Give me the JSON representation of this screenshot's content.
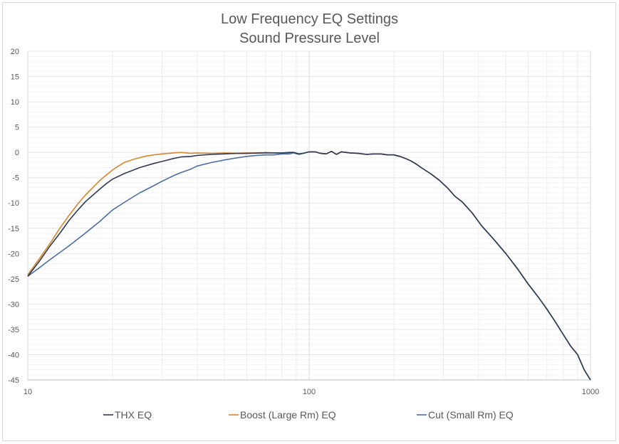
{
  "chart_data": {
    "type": "line",
    "title": "Low Frequency EQ Settings",
    "subtitle": "Sound Pressure Level",
    "x_scale": "log",
    "xlim": [
      10,
      1000
    ],
    "ylim": [
      -45,
      20
    ],
    "x_ticks": [
      "10",
      "100",
      "1000"
    ],
    "y_ticks": [
      "20",
      "15",
      "10",
      "5",
      "0",
      "-5",
      "-10",
      "-15",
      "-20",
      "-25",
      "-30",
      "-35",
      "-40",
      "-45"
    ],
    "grid": true,
    "legend_position": "bottom",
    "series": [
      {
        "name": "THX EQ",
        "color": "#2e3b55",
        "points": [
          [
            10,
            -24.5
          ],
          [
            11,
            -21.5
          ],
          [
            12,
            -18.5
          ],
          [
            13,
            -16
          ],
          [
            14,
            -13.5
          ],
          [
            15,
            -11.5
          ],
          [
            16,
            -9.8
          ],
          [
            17,
            -8.5
          ],
          [
            18,
            -7.3
          ],
          [
            19,
            -6.2
          ],
          [
            20,
            -5.3
          ],
          [
            22,
            -4.2
          ],
          [
            25,
            -3
          ],
          [
            28,
            -2.2
          ],
          [
            30,
            -1.8
          ],
          [
            33,
            -1.2
          ],
          [
            35,
            -0.9
          ],
          [
            38,
            -0.8
          ],
          [
            40,
            -0.6
          ],
          [
            45,
            -0.4
          ],
          [
            50,
            -0.3
          ],
          [
            55,
            -0.2
          ],
          [
            60,
            -0.2
          ],
          [
            65,
            -0.15
          ],
          [
            70,
            -0.1
          ],
          [
            75,
            -0.1
          ],
          [
            80,
            -0.1
          ],
          [
            85,
            0
          ],
          [
            88,
            0
          ],
          [
            92,
            -0.3
          ],
          [
            95,
            -0.2
          ],
          [
            100,
            0.1
          ],
          [
            105,
            0.1
          ],
          [
            110,
            -0.2
          ],
          [
            115,
            -0.3
          ],
          [
            120,
            0.2
          ],
          [
            125,
            -0.4
          ],
          [
            130,
            0.1
          ],
          [
            140,
            -0.1
          ],
          [
            150,
            -0.2
          ],
          [
            160,
            -0.4
          ],
          [
            170,
            -0.3
          ],
          [
            180,
            -0.3
          ],
          [
            190,
            -0.5
          ],
          [
            200,
            -0.5
          ],
          [
            210,
            -0.8
          ],
          [
            220,
            -1.2
          ],
          [
            230,
            -1.7
          ],
          [
            240,
            -2.3
          ],
          [
            250,
            -3
          ],
          [
            270,
            -4.2
          ],
          [
            290,
            -5.5
          ],
          [
            310,
            -7
          ],
          [
            330,
            -8.7
          ],
          [
            350,
            -9.8
          ],
          [
            380,
            -12
          ],
          [
            410,
            -14.5
          ],
          [
            450,
            -17
          ],
          [
            500,
            -20
          ],
          [
            550,
            -23
          ],
          [
            600,
            -26
          ],
          [
            650,
            -28.5
          ],
          [
            700,
            -31
          ],
          [
            750,
            -33.5
          ],
          [
            800,
            -36
          ],
          [
            850,
            -38.3
          ],
          [
            900,
            -40
          ],
          [
            950,
            -43
          ],
          [
            1000,
            -45
          ]
        ]
      },
      {
        "name": "Boost (Large Rm) EQ",
        "color": "#d9862e",
        "points": [
          [
            10,
            -24.2
          ],
          [
            11,
            -21
          ],
          [
            12,
            -18
          ],
          [
            13,
            -15
          ],
          [
            14,
            -12.5
          ],
          [
            15,
            -10.3
          ],
          [
            16,
            -8.5
          ],
          [
            17,
            -7
          ],
          [
            18,
            -5.6
          ],
          [
            19,
            -4.5
          ],
          [
            20,
            -3.5
          ],
          [
            21,
            -2.7
          ],
          [
            22,
            -2
          ],
          [
            24,
            -1.3
          ],
          [
            26,
            -0.8
          ],
          [
            28,
            -0.5
          ],
          [
            30,
            -0.3
          ],
          [
            33,
            -0.1
          ],
          [
            35,
            0
          ],
          [
            38,
            -0.2
          ],
          [
            40,
            -0.1
          ],
          [
            45,
            -0.2
          ],
          [
            50,
            -0.1
          ],
          [
            55,
            -0.2
          ],
          [
            60,
            -0.1
          ],
          [
            65,
            -0.1
          ],
          [
            70,
            0
          ],
          [
            75,
            -0.1
          ],
          [
            80,
            -0.1
          ],
          [
            85,
            -0.1
          ],
          [
            88,
            0
          ],
          [
            92,
            -0.3
          ],
          [
            95,
            -0.2
          ],
          [
            100,
            0.1
          ],
          [
            105,
            0.1
          ],
          [
            110,
            -0.2
          ],
          [
            115,
            -0.3
          ],
          [
            120,
            0.2
          ],
          [
            125,
            -0.4
          ],
          [
            130,
            0.1
          ],
          [
            140,
            -0.1
          ],
          [
            150,
            -0.2
          ],
          [
            160,
            -0.4
          ],
          [
            170,
            -0.3
          ],
          [
            180,
            -0.3
          ],
          [
            190,
            -0.5
          ],
          [
            200,
            -0.5
          ],
          [
            210,
            -0.8
          ],
          [
            220,
            -1.2
          ],
          [
            230,
            -1.7
          ],
          [
            240,
            -2.3
          ],
          [
            250,
            -3
          ],
          [
            270,
            -4.2
          ],
          [
            290,
            -5.5
          ],
          [
            310,
            -7
          ],
          [
            330,
            -8.7
          ],
          [
            350,
            -9.8
          ],
          [
            380,
            -12
          ],
          [
            410,
            -14.5
          ],
          [
            450,
            -17
          ],
          [
            500,
            -20
          ],
          [
            550,
            -23
          ],
          [
            600,
            -26
          ],
          [
            650,
            -28.5
          ],
          [
            700,
            -31
          ],
          [
            750,
            -33.5
          ],
          [
            800,
            -36
          ],
          [
            850,
            -38.3
          ],
          [
            900,
            -40
          ],
          [
            950,
            -43
          ],
          [
            1000,
            -45
          ]
        ]
      },
      {
        "name": "Cut (Small Rm) EQ",
        "color": "#4a6da7",
        "points": [
          [
            10,
            -24.5
          ],
          [
            11,
            -22.8
          ],
          [
            12,
            -21.2
          ],
          [
            13,
            -19.8
          ],
          [
            14,
            -18.5
          ],
          [
            15,
            -17.2
          ],
          [
            16,
            -16
          ],
          [
            17,
            -14.8
          ],
          [
            18,
            -13.7
          ],
          [
            19,
            -12.5
          ],
          [
            20,
            -11.4
          ],
          [
            22,
            -9.9
          ],
          [
            25,
            -8
          ],
          [
            28,
            -6.6
          ],
          [
            30,
            -5.7
          ],
          [
            33,
            -4.6
          ],
          [
            35,
            -4
          ],
          [
            38,
            -3.3
          ],
          [
            40,
            -2.7
          ],
          [
            45,
            -2
          ],
          [
            50,
            -1.5
          ],
          [
            55,
            -1.1
          ],
          [
            60,
            -0.8
          ],
          [
            65,
            -0.6
          ],
          [
            70,
            -0.5
          ],
          [
            75,
            -0.5
          ],
          [
            80,
            -0.3
          ],
          [
            85,
            -0.3
          ],
          [
            88,
            -0.1
          ],
          [
            92,
            -0.4
          ],
          [
            95,
            -0.2
          ],
          [
            100,
            0.1
          ],
          [
            105,
            0.1
          ],
          [
            110,
            -0.2
          ],
          [
            115,
            -0.3
          ],
          [
            120,
            0.2
          ],
          [
            125,
            -0.4
          ],
          [
            130,
            0.1
          ],
          [
            140,
            -0.1
          ],
          [
            150,
            -0.2
          ],
          [
            160,
            -0.4
          ],
          [
            170,
            -0.3
          ],
          [
            180,
            -0.3
          ],
          [
            190,
            -0.5
          ],
          [
            200,
            -0.5
          ],
          [
            210,
            -0.8
          ],
          [
            220,
            -1.2
          ],
          [
            230,
            -1.7
          ],
          [
            240,
            -2.3
          ],
          [
            250,
            -3
          ],
          [
            270,
            -4.2
          ],
          [
            290,
            -5.5
          ],
          [
            310,
            -7
          ],
          [
            330,
            -8.7
          ],
          [
            350,
            -9.8
          ],
          [
            380,
            -12
          ],
          [
            410,
            -14.5
          ],
          [
            450,
            -17
          ],
          [
            500,
            -20
          ],
          [
            550,
            -23
          ],
          [
            600,
            -26
          ],
          [
            650,
            -28.5
          ],
          [
            700,
            -31
          ],
          [
            750,
            -33.5
          ],
          [
            800,
            -36
          ],
          [
            850,
            -38.3
          ],
          [
            900,
            -40
          ],
          [
            950,
            -43
          ],
          [
            1000,
            -45
          ]
        ]
      }
    ]
  }
}
